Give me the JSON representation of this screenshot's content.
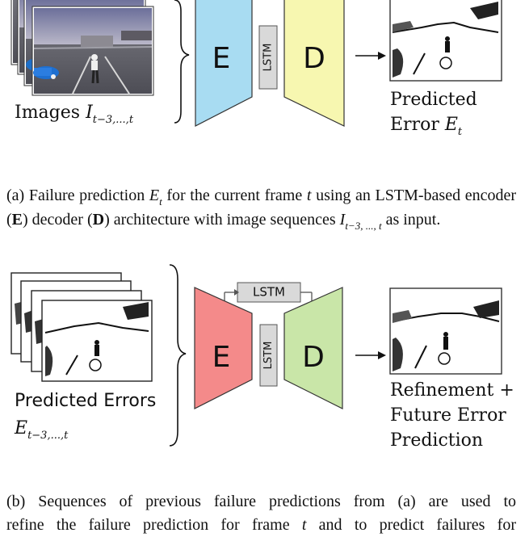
{
  "panel_a": {
    "input_label": "Images ",
    "input_var": "I",
    "input_sub": "t−3,...,t",
    "encoder_letter": "E",
    "decoder_letter": "D",
    "lstm_label": "LSTM",
    "output_line1": "Predicted",
    "output_line2": "Error ",
    "output_var": "E",
    "output_sub": "t",
    "colors": {
      "encoder": "#a8dcf2",
      "decoder": "#f7f7b0",
      "lstm_box": "#d9d9d9"
    }
  },
  "caption_a": {
    "part1": "(a) Failure prediction ",
    "var1": "E",
    "var1_sub": "t",
    "part2": " for the current frame ",
    "var2": "t",
    "part3": " using an LSTM-based encoder (",
    "bold1": "E",
    "part4": ") decoder (",
    "bold2": "D",
    "part5": ") architecture with image sequences ",
    "var3": "I",
    "var3_sub": "t−3, ..., t",
    "part6": " as input."
  },
  "panel_b": {
    "input_line1": "Predicted Errors",
    "input_var": "E",
    "input_sub": "t−3,...,t",
    "encoder_letter": "E",
    "decoder_letter": "D",
    "lstm_label": "LSTM",
    "skip_lstm_label": "LSTM",
    "output_line1": "Refinement +",
    "output_line2": "Future Error",
    "output_line3": "Prediction",
    "colors": {
      "encoder": "#f48a8a",
      "decoder": "#c9e6a8",
      "lstm_box": "#d9d9d9"
    }
  },
  "caption_b": {
    "line1": "(b) Sequences of previous failure predictions from (a) are used to",
    "line2_part1": "refine the failure prediction for frame ",
    "line2_var": "t",
    "line2_part2": " and to predict failures for"
  }
}
